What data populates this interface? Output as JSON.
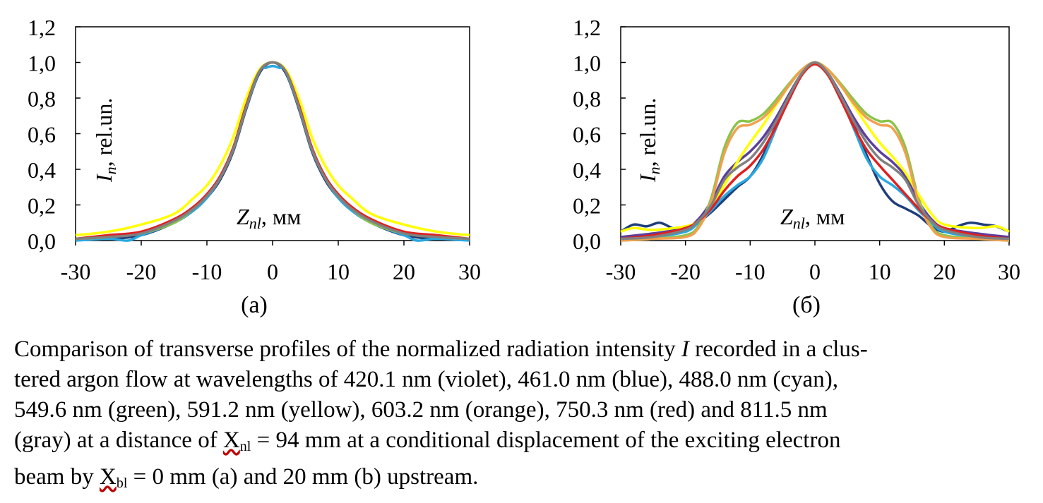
{
  "chart_data": [
    {
      "type": "line",
      "panel": "(a)",
      "xlim": [
        -30,
        30
      ],
      "ylim": [
        0,
        1.2
      ],
      "xticks": [
        "-30",
        "-20",
        "-10",
        "0",
        "10",
        "20",
        "30"
      ],
      "yticks": [
        "0,0",
        "0,2",
        "0,4",
        "0,6",
        "0,8",
        "1,0",
        "1,2"
      ],
      "ylabel_main": "I",
      "ylabel_sub": "n",
      "ylabel_rest": ", rel.un.",
      "xlabel_main": "Z",
      "xlabel_sub": "nl",
      "xlabel_rest": ", мм",
      "grid": false,
      "series": [
        {
          "color": "#5b3f9a",
          "x": [
            -30,
            -25,
            -20,
            -15,
            -12,
            -10,
            -8,
            -6,
            -4,
            -2,
            0,
            2,
            4,
            6,
            8,
            10,
            12,
            15,
            20,
            25,
            30
          ],
          "y": [
            0.01,
            0.02,
            0.04,
            0.11,
            0.19,
            0.26,
            0.36,
            0.52,
            0.76,
            0.95,
            1.0,
            0.95,
            0.76,
            0.52,
            0.36,
            0.26,
            0.19,
            0.11,
            0.04,
            0.02,
            0.01
          ]
        },
        {
          "color": "#1f3e7a",
          "x": [
            -30,
            -25,
            -20,
            -15,
            -12,
            -10,
            -8,
            -6,
            -4,
            -2,
            0,
            2,
            4,
            6,
            8,
            10,
            12,
            15,
            20,
            25,
            30
          ],
          "y": [
            0.01,
            0.01,
            0.03,
            0.1,
            0.17,
            0.24,
            0.34,
            0.5,
            0.74,
            0.94,
            1.0,
            0.94,
            0.74,
            0.5,
            0.34,
            0.24,
            0.17,
            0.1,
            0.03,
            0.01,
            0.01
          ]
        },
        {
          "color": "#29a8e0",
          "x": [
            -30,
            -25,
            -22,
            -20,
            -15,
            -12,
            -10,
            -8,
            -6,
            -4,
            -2,
            -1,
            0,
            1,
            2,
            4,
            6,
            8,
            10,
            12,
            15,
            20,
            22,
            25,
            30
          ],
          "y": [
            0.0,
            0.01,
            0.0,
            0.03,
            0.1,
            0.17,
            0.24,
            0.35,
            0.51,
            0.75,
            0.95,
            0.97,
            0.98,
            0.97,
            0.95,
            0.75,
            0.51,
            0.35,
            0.24,
            0.17,
            0.1,
            0.03,
            0.0,
            0.01,
            0.0
          ]
        },
        {
          "color": "#8bc34a",
          "x": [
            -30,
            -25,
            -20,
            -15,
            -12,
            -10,
            -8,
            -6,
            -4,
            -2,
            0,
            2,
            4,
            6,
            8,
            10,
            12,
            15,
            20,
            25,
            30
          ],
          "y": [
            0.01,
            0.02,
            0.04,
            0.1,
            0.18,
            0.25,
            0.35,
            0.51,
            0.75,
            0.95,
            1.0,
            0.95,
            0.75,
            0.51,
            0.35,
            0.25,
            0.18,
            0.1,
            0.04,
            0.02,
            0.01
          ]
        },
        {
          "color": "#ffff00",
          "x": [
            -30,
            -25,
            -20,
            -15,
            -12,
            -10,
            -8,
            -6,
            -4,
            -2,
            0,
            2,
            4,
            6,
            8,
            10,
            12,
            15,
            20,
            25,
            30
          ],
          "y": [
            0.03,
            0.05,
            0.09,
            0.15,
            0.24,
            0.31,
            0.42,
            0.58,
            0.8,
            0.96,
            1.0,
            0.96,
            0.8,
            0.58,
            0.42,
            0.31,
            0.24,
            0.15,
            0.09,
            0.05,
            0.03
          ]
        },
        {
          "color": "#f0a050",
          "x": [
            -30,
            -25,
            -20,
            -15,
            -12,
            -10,
            -8,
            -6,
            -4,
            -2,
            0,
            2,
            4,
            6,
            8,
            10,
            12,
            15,
            20,
            25,
            30
          ],
          "y": [
            0.01,
            0.02,
            0.05,
            0.11,
            0.19,
            0.26,
            0.36,
            0.52,
            0.76,
            0.95,
            1.0,
            0.95,
            0.76,
            0.52,
            0.36,
            0.26,
            0.19,
            0.11,
            0.05,
            0.02,
            0.01
          ]
        },
        {
          "color": "#e02020",
          "x": [
            -30,
            -25,
            -20,
            -15,
            -12,
            -10,
            -8,
            -6,
            -4,
            -2,
            0,
            2,
            4,
            6,
            8,
            10,
            12,
            15,
            20,
            25,
            30
          ],
          "y": [
            0.01,
            0.03,
            0.05,
            0.12,
            0.19,
            0.26,
            0.36,
            0.52,
            0.76,
            0.95,
            1.0,
            0.95,
            0.76,
            0.52,
            0.36,
            0.26,
            0.19,
            0.12,
            0.05,
            0.03,
            0.01
          ]
        },
        {
          "color": "#808080",
          "x": [
            -30,
            -25,
            -20,
            -15,
            -12,
            -10,
            -8,
            -6,
            -4,
            -2,
            0,
            2,
            4,
            6,
            8,
            10,
            12,
            15,
            20,
            25,
            30
          ],
          "y": [
            0.01,
            0.02,
            0.04,
            0.11,
            0.18,
            0.25,
            0.35,
            0.51,
            0.75,
            0.95,
            1.0,
            0.95,
            0.75,
            0.51,
            0.35,
            0.25,
            0.18,
            0.11,
            0.04,
            0.02,
            0.01
          ]
        }
      ]
    },
    {
      "type": "line",
      "panel": "(б)",
      "xlim": [
        -30,
        30
      ],
      "ylim": [
        0,
        1.2
      ],
      "xticks": [
        "-30",
        "-20",
        "-10",
        "0",
        "10",
        "20",
        "30"
      ],
      "yticks": [
        "0,0",
        "0,2",
        "0,4",
        "0,6",
        "0,8",
        "1,0",
        "1,2"
      ],
      "ylabel_main": "I",
      "ylabel_sub": "n",
      "ylabel_rest": ", rel.un.",
      "xlabel_main": "Z",
      "xlabel_sub": "nl",
      "xlabel_rest": ", мм",
      "grid": false,
      "series": [
        {
          "color": "#5b3f9a",
          "x": [
            -30,
            -25,
            -20,
            -18,
            -16,
            -14,
            -12,
            -10,
            -8,
            -6,
            -4,
            -2,
            0,
            2,
            4,
            6,
            8,
            10,
            12,
            14,
            16,
            18,
            20,
            25,
            30
          ],
          "y": [
            0.02,
            0.04,
            0.07,
            0.12,
            0.22,
            0.36,
            0.44,
            0.5,
            0.58,
            0.69,
            0.82,
            0.94,
            1.0,
            0.94,
            0.82,
            0.69,
            0.58,
            0.5,
            0.44,
            0.36,
            0.22,
            0.12,
            0.07,
            0.04,
            0.02
          ]
        },
        {
          "color": "#1f3e7a",
          "x": [
            -30,
            -28,
            -26,
            -24,
            -22,
            -20,
            -18,
            -16,
            -14,
            -12,
            -10,
            -8,
            -6,
            -4,
            -2,
            0,
            2,
            4,
            6,
            8,
            10,
            12,
            14,
            16,
            18,
            20,
            22,
            24,
            26,
            28,
            30
          ],
          "y": [
            0.05,
            0.09,
            0.08,
            0.1,
            0.07,
            0.05,
            0.1,
            0.16,
            0.23,
            0.3,
            0.36,
            0.48,
            0.65,
            0.81,
            0.94,
            1.0,
            0.94,
            0.81,
            0.65,
            0.48,
            0.32,
            0.22,
            0.18,
            0.14,
            0.08,
            0.05,
            0.08,
            0.1,
            0.09,
            0.08,
            0.05
          ]
        },
        {
          "color": "#29a8e0",
          "x": [
            -30,
            -25,
            -20,
            -18,
            -16,
            -14,
            -12,
            -10,
            -8,
            -6,
            -4,
            -2,
            0,
            2,
            4,
            6,
            8,
            10,
            12,
            14,
            16,
            18,
            20,
            25,
            30
          ],
          "y": [
            0.01,
            0.02,
            0.05,
            0.1,
            0.17,
            0.25,
            0.31,
            0.36,
            0.46,
            0.63,
            0.8,
            0.94,
            1.0,
            0.94,
            0.8,
            0.63,
            0.46,
            0.36,
            0.31,
            0.25,
            0.17,
            0.1,
            0.05,
            0.02,
            0.01
          ]
        },
        {
          "color": "#8bc34a",
          "x": [
            -30,
            -25,
            -20,
            -18,
            -16,
            -14,
            -12,
            -10,
            -8,
            -6,
            -4,
            -2,
            0,
            2,
            4,
            6,
            8,
            10,
            12,
            14,
            16,
            18,
            20,
            25,
            30
          ],
          "y": [
            0.0,
            0.01,
            0.03,
            0.08,
            0.24,
            0.52,
            0.66,
            0.67,
            0.71,
            0.79,
            0.88,
            0.96,
            1.0,
            0.96,
            0.88,
            0.79,
            0.71,
            0.67,
            0.66,
            0.52,
            0.24,
            0.08,
            0.03,
            0.01,
            0.0
          ]
        },
        {
          "color": "#ffff00",
          "x": [
            -30,
            -28,
            -25,
            -20,
            -18,
            -16,
            -14,
            -12,
            -10,
            -8,
            -6,
            -4,
            -2,
            0,
            2,
            4,
            6,
            8,
            10,
            12,
            14,
            16,
            18,
            20,
            25,
            28,
            30
          ],
          "y": [
            0.05,
            0.07,
            0.06,
            0.08,
            0.11,
            0.19,
            0.31,
            0.44,
            0.55,
            0.65,
            0.76,
            0.87,
            0.96,
            1.0,
            0.96,
            0.87,
            0.76,
            0.65,
            0.55,
            0.47,
            0.38,
            0.26,
            0.15,
            0.09,
            0.07,
            0.08,
            0.05
          ]
        },
        {
          "color": "#f0a050",
          "x": [
            -30,
            -25,
            -20,
            -18,
            -16,
            -14,
            -12,
            -10,
            -8,
            -6,
            -4,
            -2,
            0,
            2,
            4,
            6,
            8,
            10,
            12,
            14,
            16,
            18,
            20,
            25,
            30
          ],
          "y": [
            0.0,
            0.01,
            0.02,
            0.07,
            0.22,
            0.49,
            0.63,
            0.65,
            0.69,
            0.77,
            0.87,
            0.96,
            1.0,
            0.96,
            0.87,
            0.77,
            0.69,
            0.65,
            0.63,
            0.49,
            0.22,
            0.07,
            0.02,
            0.01,
            0.0
          ]
        },
        {
          "color": "#e02020",
          "x": [
            -30,
            -25,
            -20,
            -18,
            -16,
            -14,
            -12,
            -10,
            -8,
            -6,
            -4,
            -2,
            0,
            2,
            4,
            6,
            8,
            10,
            12,
            14,
            16,
            18,
            20,
            25,
            30
          ],
          "y": [
            0.01,
            0.03,
            0.07,
            0.11,
            0.18,
            0.28,
            0.36,
            0.42,
            0.51,
            0.64,
            0.79,
            0.93,
            0.99,
            0.93,
            0.79,
            0.64,
            0.51,
            0.42,
            0.34,
            0.26,
            0.18,
            0.11,
            0.07,
            0.03,
            0.01
          ]
        },
        {
          "color": "#808080",
          "x": [
            -30,
            -25,
            -20,
            -18,
            -16,
            -14,
            -12,
            -10,
            -8,
            -6,
            -4,
            -2,
            0,
            2,
            4,
            6,
            8,
            10,
            12,
            14,
            16,
            18,
            20,
            25,
            30
          ],
          "y": [
            0.01,
            0.02,
            0.06,
            0.11,
            0.2,
            0.34,
            0.41,
            0.46,
            0.55,
            0.67,
            0.81,
            0.94,
            1.0,
            0.94,
            0.81,
            0.67,
            0.55,
            0.46,
            0.41,
            0.34,
            0.2,
            0.11,
            0.06,
            0.02,
            0.01
          ]
        }
      ]
    }
  ],
  "panel_labels": {
    "a": "(a)",
    "b": "(б)"
  },
  "caption": {
    "line1_pre": "Comparison of transverse profiles of the normalized radiation intensity ",
    "line1_italic": "I",
    "line1_post": " recorded in a clus-",
    "line2": "tered argon flow at wavelengths of 420.1 nm (violet), 461.0 nm (blue), 488.0 nm (cyan),",
    "line3": "549.6 nm (green), 591.2 nm (yellow), 603.2 nm (orange), 750.3 nm (red) and 811.5 nm",
    "line4_pre": "(gray) at a distance of ",
    "line4_x": "X",
    "line4_sub": "nl",
    "line4_post": " = 94 mm at a conditional displacement of the exciting electron",
    "line5_pre": "beam by ",
    "line5_x": "X",
    "line5_sub": "bl",
    "line5_post": " = 0 mm (a) and 20 mm (b) upstream."
  }
}
